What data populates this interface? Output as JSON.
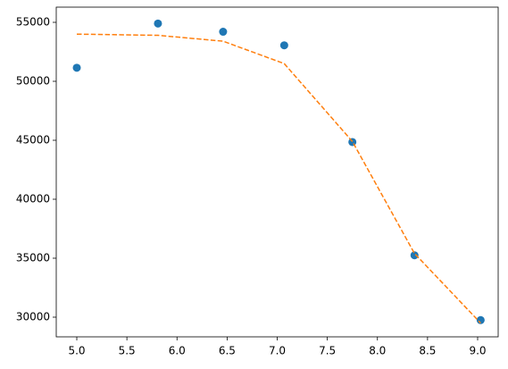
{
  "chart_data": {
    "type": "scatter",
    "x": [
      5.0,
      5.81,
      6.46,
      7.07,
      7.75,
      8.37,
      9.03
    ],
    "series": [
      {
        "kind": "markers",
        "color": "#1f77b4",
        "values": [
          51150,
          54900,
          54200,
          53050,
          44850,
          35250,
          29750
        ]
      },
      {
        "kind": "line",
        "linestyle": "dashed",
        "color": "#ff7f0e",
        "values": [
          54000,
          53900,
          53400,
          51500,
          44900,
          35400,
          29500
        ]
      }
    ],
    "xlim": [
      4.795,
      9.205
    ],
    "xticks": [
      {
        "value": 5,
        "label": "5.0"
      },
      5.5,
      {
        "value": 6,
        "label": "6.0"
      },
      6.5,
      {
        "value": 7,
        "label": "7.0"
      },
      7.5,
      {
        "value": 8,
        "label": "8.0"
      },
      8.5,
      {
        "value": 9,
        "label": "9.0"
      }
    ],
    "ylim": [
      28333,
      56288
    ],
    "yticks": [
      30000,
      35000,
      40000,
      45000,
      50000,
      55000
    ],
    "grid": false
  }
}
